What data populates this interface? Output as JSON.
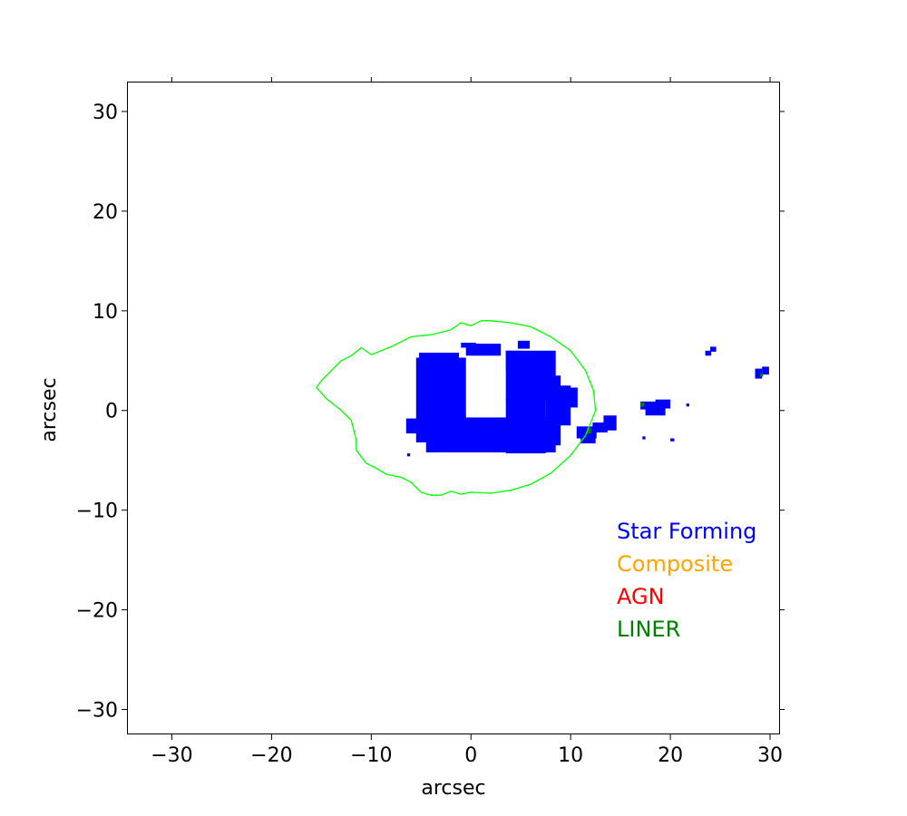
{
  "chart_data": {
    "type": "heatmap",
    "xlabel": "arcsec",
    "ylabel": "arcsec",
    "xlim": [
      -34.5,
      31
    ],
    "ylim": [
      -32.5,
      33
    ],
    "xticks": [
      -30,
      -20,
      -10,
      0,
      10,
      20,
      30
    ],
    "yticks": [
      -30,
      -20,
      -10,
      0,
      10,
      20,
      30
    ],
    "xtick_labels": [
      "−30",
      "−20",
      "−10",
      "0",
      "10",
      "20",
      "30"
    ],
    "ytick_labels": [
      "−30",
      "−20",
      "−10",
      "0",
      "10",
      "20",
      "30"
    ],
    "grid": false,
    "legend_placement": "lower-right",
    "legend": [
      {
        "label": "Star Forming",
        "color": "#0000ff"
      },
      {
        "label": "Composite",
        "color": "#ffa500"
      },
      {
        "label": "AGN",
        "color": "#ff0000"
      },
      {
        "label": "LINER",
        "color": "#008000"
      }
    ],
    "contour": {
      "color": "#00ff00",
      "points": [
        [
          -15.5,
          2.3
        ],
        [
          -14.5,
          1.2
        ],
        [
          -13,
          0
        ],
        [
          -12,
          -1
        ],
        [
          -11.5,
          -3
        ],
        [
          -11.5,
          -4
        ],
        [
          -10.5,
          -5.3
        ],
        [
          -9.5,
          -5.8
        ],
        [
          -8.5,
          -6.4
        ],
        [
          -7,
          -6.7
        ],
        [
          -6,
          -7.2
        ],
        [
          -5,
          -8.2
        ],
        [
          -4,
          -8.5
        ],
        [
          -3,
          -8.5
        ],
        [
          -2,
          -8.1
        ],
        [
          -1,
          -8.4
        ],
        [
          0,
          -8.2
        ],
        [
          2,
          -8.3
        ],
        [
          4,
          -8
        ],
        [
          6,
          -7.4
        ],
        [
          8,
          -6.3
        ],
        [
          10,
          -4.5
        ],
        [
          11.5,
          -2.5
        ],
        [
          12.5,
          0
        ],
        [
          12.3,
          2
        ],
        [
          11.5,
          4
        ],
        [
          10,
          6
        ],
        [
          8,
          7.4
        ],
        [
          6,
          8.4
        ],
        [
          4,
          8.8
        ],
        [
          2,
          9
        ],
        [
          1,
          9
        ],
        [
          0,
          8.5
        ],
        [
          -1,
          8.8
        ],
        [
          -2,
          8.1
        ],
        [
          -4,
          7.6
        ],
        [
          -6,
          7.4
        ],
        [
          -8,
          6.4
        ],
        [
          -10,
          5.6
        ],
        [
          -11,
          6.3
        ],
        [
          -12,
          5.5
        ],
        [
          -13,
          5
        ],
        [
          -14,
          4
        ],
        [
          -15,
          3
        ]
      ]
    },
    "regions": [
      {
        "class": "Star Forming",
        "color": "#0000ff",
        "rects": [
          [
            -5.5,
            -3.2,
            5,
            8.5
          ],
          [
            -6.5,
            -2.3,
            1.2,
            1.5
          ],
          [
            -4.5,
            -4.2,
            13,
            3.5
          ],
          [
            -5.2,
            4.8,
            4,
            1
          ],
          [
            -0.5,
            5.5,
            3.5,
            1.2
          ],
          [
            -1,
            6.3,
            1.5,
            0.5
          ],
          [
            3.5,
            1,
            5,
            5
          ],
          [
            3.5,
            -4.3,
            4,
            5.5
          ],
          [
            7.5,
            -3.5,
            1.5,
            7
          ],
          [
            8.5,
            -1.5,
            1.5,
            4
          ],
          [
            9.5,
            0.3,
            1.2,
            2
          ],
          [
            3.5,
            4,
            1.5,
            2
          ],
          [
            4.7,
            6.2,
            1.2,
            0.8
          ],
          [
            10.6,
            -2.8,
            2,
            1.2
          ],
          [
            11,
            -3.3,
            1.5,
            0.8
          ],
          [
            12.2,
            -2.2,
            1.5,
            1
          ],
          [
            13.3,
            -2,
            1.3,
            1.5
          ],
          [
            17,
            0.1,
            1.5,
            0.8
          ],
          [
            17.5,
            -0.5,
            2,
            1.3
          ],
          [
            18.5,
            0.2,
            1.5,
            0.9
          ],
          [
            21.6,
            0.4,
            0.3,
            0.3
          ],
          [
            17.2,
            -2.9,
            0.3,
            0.3
          ],
          [
            20,
            -3.1,
            0.4,
            0.3
          ],
          [
            23.5,
            5.5,
            0.6,
            0.5
          ],
          [
            24,
            5.9,
            0.6,
            0.5
          ],
          [
            28.5,
            3.2,
            0.7,
            1
          ],
          [
            29.2,
            3.6,
            0.7,
            0.8
          ],
          [
            -6.4,
            -4.6,
            0.3,
            0.3
          ]
        ]
      },
      {
        "class": "LINER",
        "color": "#008000",
        "rects": [
          [
            11.6,
            -2.3,
            0.5,
            0.5
          ],
          [
            17,
            0.4,
            0.4,
            0.4
          ],
          [
            29,
            3.4,
            0.3,
            0.3
          ]
        ]
      }
    ]
  }
}
